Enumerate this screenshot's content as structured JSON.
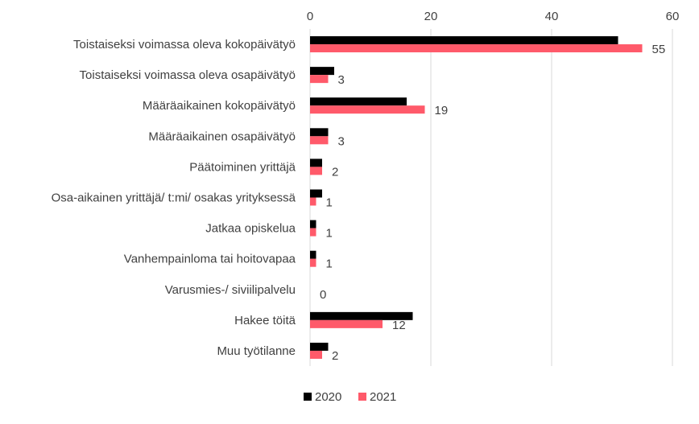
{
  "chart_data": {
    "type": "bar",
    "orientation": "horizontal",
    "categories": [
      "Toistaiseksi voimassa oleva kokopäivätyö",
      "Toistaiseksi voimassa oleva osapäivätyö",
      "Määräaikainen kokopäivätyö",
      "Määräaikainen osapäivätyö",
      "Päätoiminen yrittäjä",
      "Osa-aikainen yrittäjä/ t:mi/ osakas yrityksessä",
      "Jatkaa opiskelua",
      "Vanhempainloma tai hoitovapaa",
      "Varusmies-/ siviilipalvelu",
      "Hakee töitä",
      "Muu työtilanne"
    ],
    "series": [
      {
        "name": "2020",
        "color": "#000000",
        "values": [
          51,
          4,
          16,
          3,
          2,
          2,
          1,
          1,
          0,
          17,
          3
        ]
      },
      {
        "name": "2021",
        "color": "#ff5a6a",
        "values": [
          55,
          3,
          19,
          3,
          2,
          1,
          1,
          1,
          0,
          12,
          2
        ]
      }
    ],
    "data_labels_series": "2021",
    "data_labels": [
      "55",
      "3",
      "19",
      "3",
      "2",
      "1",
      "1",
      "1",
      "0",
      "12",
      "2"
    ],
    "xlim": [
      0,
      60
    ],
    "x_ticks": [
      "0",
      "20",
      "40",
      "60"
    ],
    "x_tick_values": [
      0,
      20,
      40,
      60
    ],
    "x_axis_position": "top",
    "grid": true,
    "legend_position": "bottom",
    "title": "",
    "xlabel": "",
    "ylabel": ""
  }
}
